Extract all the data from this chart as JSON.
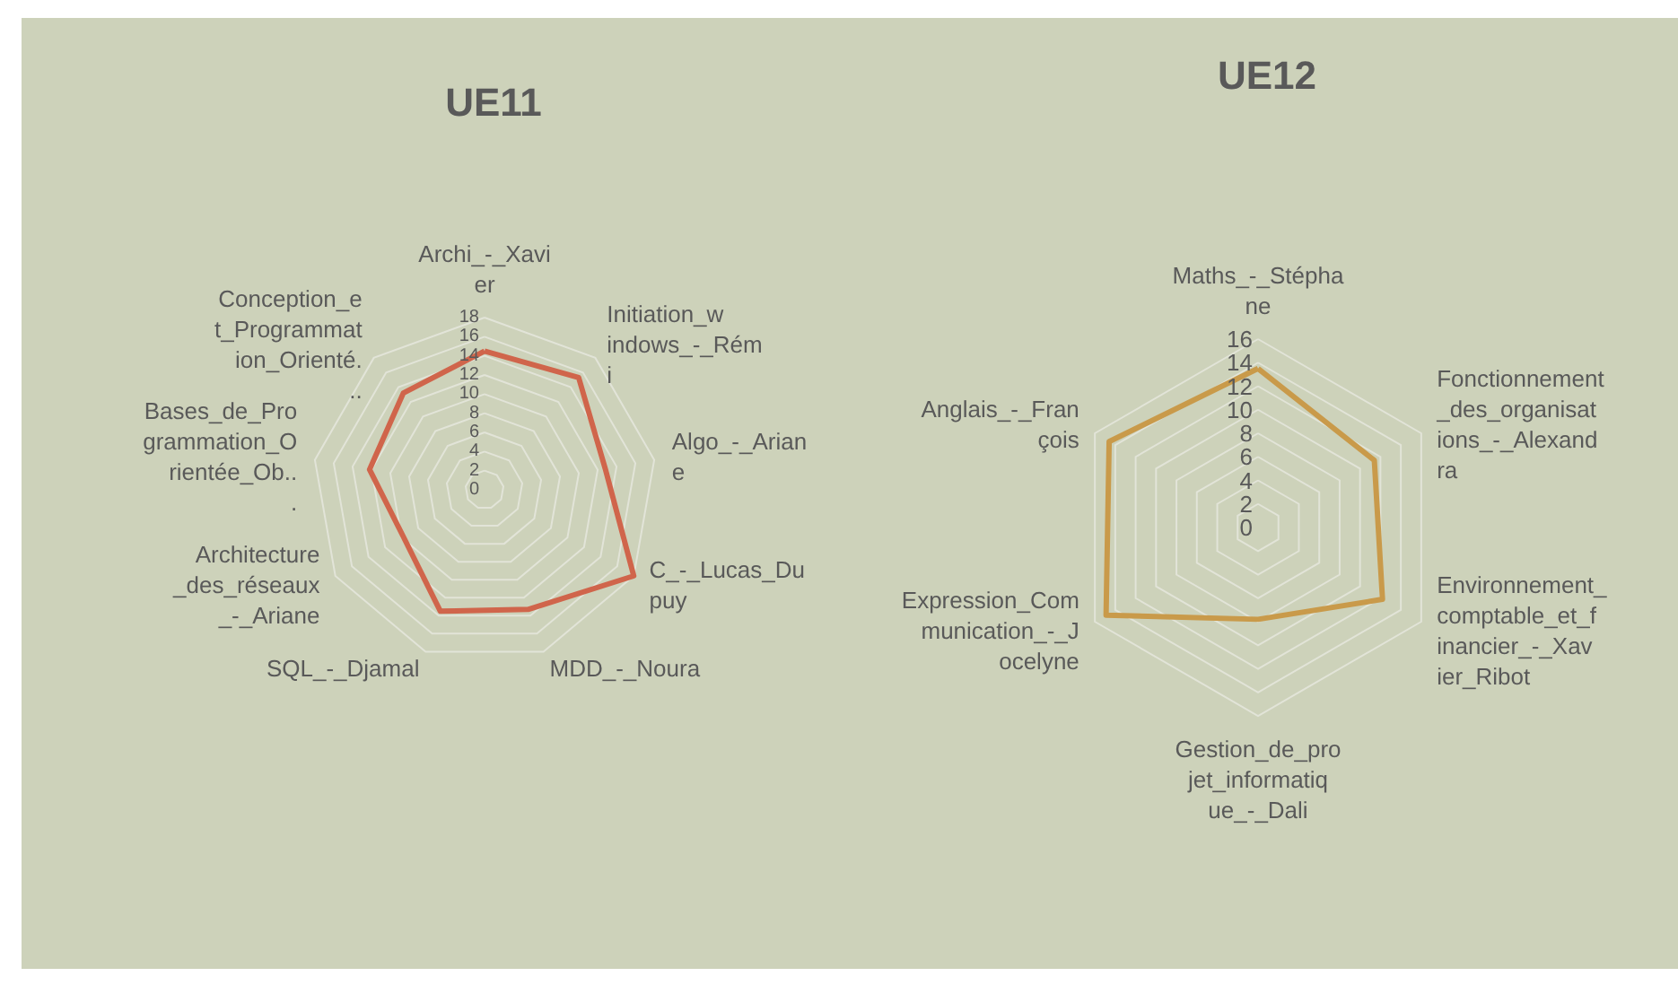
{
  "chart_data": [
    {
      "type": "radar",
      "title": "UE11",
      "categories": [
        "Archi_-_Xavier",
        "Initiation_windows_-_Rémi",
        "Algo_-_Ariane",
        "C_-_Lucas_Dupuy",
        "MDD_-_Noura",
        "SQL_-_Djamal",
        "Architecture_des_réseaux_-_Ariane",
        "Bases_de_Programmation_Orientée_Ob...",
        "Conception_et_Programmation_Orienté..."
      ],
      "series": [
        {
          "color": "#d0654b",
          "values": [
            14.5,
            15.3,
            12.8,
            18,
            13.3,
            13.5,
            9.8,
            12.2,
            13.2
          ]
        }
      ],
      "ylim": [
        0,
        18
      ],
      "yticks": [
        0,
        2,
        4,
        6,
        8,
        10,
        12,
        14,
        16,
        18
      ],
      "grid": true,
      "marker": "none"
    },
    {
      "type": "radar",
      "title": "UE12",
      "categories": [
        "Maths_-_Stéphane",
        "Fonctionnement_des_organisations_-_Alexandra",
        "Environnement_comptable_et_financier_-_Xavier_Ribot",
        "Gestion_de_projet_informatique_-_Dali",
        "Expression_Communication_-_Jocelyne",
        "Anglais_-_François"
      ],
      "series": [
        {
          "color": "#c99a4a",
          "values": [
            13.5,
            11.4,
            12.2,
            7.8,
            14.9,
            14.6
          ]
        }
      ],
      "ylim": [
        0,
        16
      ],
      "yticks": [
        0,
        2,
        4,
        6,
        8,
        10,
        12,
        14,
        16
      ],
      "grid": true,
      "marker": "none"
    }
  ]
}
